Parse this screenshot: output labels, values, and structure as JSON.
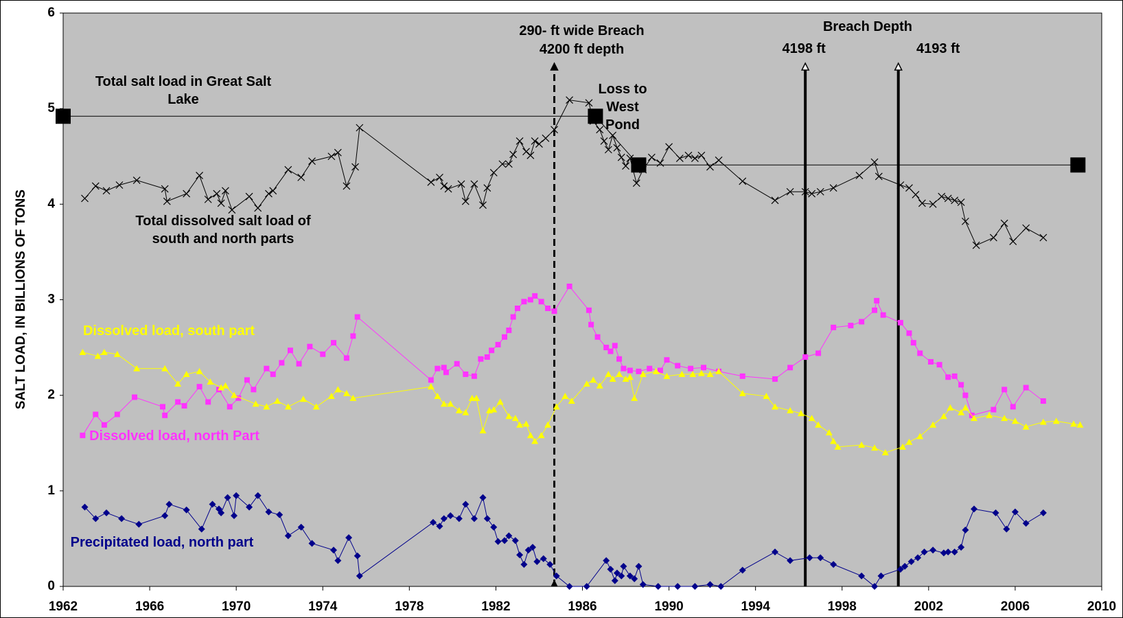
{
  "chart_data": {
    "type": "line",
    "ylabel": "SALT LOAD, IN BILLIONS OF TONS",
    "xlim": [
      1962,
      2010
    ],
    "xticks": [
      1962,
      1966,
      1970,
      1974,
      1978,
      1982,
      1986,
      1990,
      1994,
      1998,
      2002,
      2006,
      2010
    ],
    "ylim": [
      0,
      6
    ],
    "yticks": [
      0,
      1,
      2,
      3,
      4,
      5,
      6
    ],
    "grid": false,
    "series": [
      {
        "name": "Total salt load in Great Salt Lake",
        "color": "#000000",
        "marker": "bigsquare",
        "x": [
          1962,
          1986.6,
          1988.6,
          2008.9
        ],
        "values": [
          4.92,
          4.92,
          4.41,
          4.41
        ]
      },
      {
        "name": "Total dissolved salt load of south and north parts",
        "color": "#000000",
        "marker": "x",
        "x": [
          1963.0,
          1963.5,
          1964.0,
          1964.6,
          1965.4,
          1966.7,
          1966.8,
          1967.7,
          1968.3,
          1968.7,
          1969.1,
          1969.3,
          1969.5,
          1969.8,
          1970.6,
          1971.0,
          1971.5,
          1971.7,
          1972.4,
          1973.0,
          1973.5,
          1974.4,
          1974.7,
          1975.1,
          1975.5,
          1975.7,
          1979.0,
          1979.4,
          1979.6,
          1979.8,
          1980.4,
          1980.6,
          1981.0,
          1981.4,
          1981.6,
          1981.9,
          1982.3,
          1982.6,
          1982.8,
          1983.1,
          1983.4,
          1983.6,
          1983.8,
          1984.0,
          1984.3,
          1984.7,
          1985.4,
          1986.3,
          1986.5,
          1986.8,
          1987.0,
          1987.2,
          1987.4,
          1987.6,
          1987.8,
          1988.0,
          1988.2,
          1988.5,
          1988.8,
          1989.2,
          1989.6,
          1990.0,
          1990.5,
          1990.9,
          1991.2,
          1991.5,
          1991.9,
          1992.3,
          1993.4,
          1994.9,
          1995.6,
          1996.3,
          1996.6,
          1997.0,
          1997.6,
          1998.8,
          1999.5,
          1999.7,
          2000.7,
          2001.1,
          2001.4,
          2001.7,
          2002.2,
          2002.6,
          2002.9,
          2003.2,
          2003.5,
          2003.7,
          2004.2,
          2005.0,
          2005.5,
          2005.9,
          2006.5,
          2007.3
        ],
        "values": [
          4.06,
          4.19,
          4.14,
          4.2,
          4.25,
          4.16,
          4.03,
          4.11,
          4.3,
          4.05,
          4.11,
          4.01,
          4.14,
          3.94,
          4.08,
          3.96,
          4.11,
          4.14,
          4.36,
          4.28,
          4.45,
          4.5,
          4.54,
          4.19,
          4.39,
          4.8,
          4.23,
          4.28,
          4.19,
          4.16,
          4.21,
          4.03,
          4.21,
          3.99,
          4.17,
          4.33,
          4.42,
          4.42,
          4.52,
          4.66,
          4.55,
          4.51,
          4.66,
          4.63,
          4.69,
          4.78,
          5.09,
          5.06,
          4.87,
          4.78,
          4.66,
          4.57,
          4.72,
          4.59,
          4.49,
          4.4,
          4.48,
          4.22,
          4.36,
          4.49,
          4.43,
          4.6,
          4.48,
          4.51,
          4.48,
          4.51,
          4.39,
          4.46,
          4.24,
          4.04,
          4.13,
          4.13,
          4.11,
          4.13,
          4.17,
          4.3,
          4.44,
          4.29,
          4.2,
          4.17,
          4.1,
          4.01,
          4.0,
          4.08,
          4.06,
          4.04,
          4.02,
          3.82,
          3.57,
          3.65,
          3.8,
          3.61,
          3.75,
          3.65
        ]
      },
      {
        "name": "Dissolved load, north Part",
        "color": "#ff33ff",
        "marker": "square",
        "x": [
          1962.9,
          1963.5,
          1963.9,
          1964.5,
          1965.3,
          1966.6,
          1966.7,
          1967.3,
          1967.6,
          1968.3,
          1968.7,
          1969.2,
          1969.7,
          1970.1,
          1970.5,
          1970.8,
          1971.4,
          1971.7,
          1972.1,
          1972.5,
          1972.9,
          1973.4,
          1974.0,
          1974.5,
          1975.1,
          1975.4,
          1975.6,
          1979.0,
          1979.3,
          1979.6,
          1979.7,
          1980.2,
          1980.6,
          1981.0,
          1981.3,
          1981.6,
          1981.8,
          1982.1,
          1982.4,
          1982.6,
          1982.8,
          1983.0,
          1983.3,
          1983.6,
          1983.8,
          1984.1,
          1984.4,
          1984.7,
          1985.4,
          1986.3,
          1986.4,
          1986.7,
          1987.1,
          1987.3,
          1987.5,
          1987.7,
          1987.9,
          1988.2,
          1988.6,
          1989.1,
          1989.6,
          1989.9,
          1990.4,
          1991.0,
          1991.6,
          1992.3,
          1993.4,
          1994.9,
          1995.6,
          1996.3,
          1996.9,
          1997.6,
          1998.4,
          1998.9,
          1999.5,
          1999.6,
          1999.9,
          2000.7,
          2001.1,
          2001.3,
          2001.6,
          2002.1,
          2002.5,
          2002.9,
          2003.2,
          2003.5,
          2003.7,
          2004.0,
          2005.0,
          2005.5,
          2005.9,
          2006.5,
          2007.3
        ],
        "values": [
          1.58,
          1.8,
          1.69,
          1.8,
          1.98,
          1.88,
          1.79,
          1.93,
          1.89,
          2.09,
          1.93,
          2.06,
          1.88,
          1.97,
          2.16,
          2.06,
          2.28,
          2.22,
          2.34,
          2.47,
          2.33,
          2.51,
          2.43,
          2.55,
          2.39,
          2.62,
          2.82,
          2.16,
          2.28,
          2.29,
          2.24,
          2.33,
          2.22,
          2.2,
          2.38,
          2.4,
          2.47,
          2.53,
          2.61,
          2.68,
          2.82,
          2.91,
          2.98,
          3.0,
          3.04,
          2.98,
          2.91,
          2.88,
          3.14,
          2.89,
          2.74,
          2.61,
          2.5,
          2.46,
          2.52,
          2.38,
          2.28,
          2.26,
          2.25,
          2.28,
          2.26,
          2.37,
          2.31,
          2.28,
          2.29,
          2.25,
          2.2,
          2.17,
          2.29,
          2.4,
          2.44,
          2.71,
          2.73,
          2.77,
          2.89,
          2.99,
          2.84,
          2.76,
          2.65,
          2.55,
          2.44,
          2.35,
          2.32,
          2.19,
          2.2,
          2.11,
          2.0,
          1.79,
          1.85,
          2.06,
          1.88,
          2.08,
          1.94
        ]
      },
      {
        "name": "Dissolved load, south part",
        "color": "#ffff00",
        "marker": "triangle",
        "x": [
          1962.9,
          1963.6,
          1963.9,
          1964.5,
          1965.4,
          1966.7,
          1967.3,
          1967.7,
          1968.3,
          1968.8,
          1969.3,
          1969.5,
          1969.9,
          1970.9,
          1971.4,
          1971.9,
          1972.4,
          1973.1,
          1973.7,
          1974.4,
          1974.7,
          1975.1,
          1975.4,
          1979.0,
          1979.3,
          1979.6,
          1979.9,
          1980.3,
          1980.6,
          1980.9,
          1981.1,
          1981.4,
          1981.7,
          1981.9,
          1982.2,
          1982.6,
          1982.9,
          1983.1,
          1983.4,
          1983.6,
          1983.8,
          1984.1,
          1984.4,
          1984.8,
          1985.2,
          1985.5,
          1986.2,
          1986.5,
          1986.8,
          1987.2,
          1987.4,
          1987.7,
          1988.0,
          1988.2,
          1988.4,
          1988.8,
          1989.4,
          1989.9,
          1990.6,
          1991.1,
          1991.5,
          1991.9,
          1992.3,
          1993.4,
          1994.5,
          1994.9,
          1995.6,
          1996.1,
          1996.6,
          1996.9,
          1997.4,
          1997.6,
          1997.8,
          1998.9,
          1999.5,
          2000.0,
          2000.8,
          2001.1,
          2001.6,
          2002.2,
          2002.7,
          2003.0,
          2003.5,
          2003.7,
          2004.1,
          2004.8,
          2005.5,
          2006.0,
          2006.5,
          2007.3,
          2007.9,
          2008.7,
          2009.0
        ],
        "values": [
          2.45,
          2.41,
          2.45,
          2.43,
          2.28,
          2.28,
          2.12,
          2.22,
          2.25,
          2.14,
          2.08,
          2.1,
          2.0,
          1.91,
          1.88,
          1.94,
          1.88,
          1.96,
          1.88,
          1.99,
          2.06,
          2.02,
          1.97,
          2.09,
          1.99,
          1.91,
          1.91,
          1.84,
          1.82,
          1.97,
          1.97,
          1.63,
          1.84,
          1.85,
          1.93,
          1.78,
          1.76,
          1.69,
          1.7,
          1.58,
          1.52,
          1.58,
          1.69,
          1.88,
          1.99,
          1.94,
          2.12,
          2.16,
          2.1,
          2.22,
          2.17,
          2.22,
          2.17,
          2.19,
          1.97,
          2.22,
          2.25,
          2.2,
          2.22,
          2.22,
          2.23,
          2.22,
          2.25,
          2.02,
          1.99,
          1.88,
          1.84,
          1.81,
          1.76,
          1.69,
          1.61,
          1.52,
          1.46,
          1.48,
          1.45,
          1.4,
          1.46,
          1.51,
          1.57,
          1.69,
          1.78,
          1.87,
          1.82,
          1.87,
          1.76,
          1.79,
          1.76,
          1.73,
          1.67,
          1.72,
          1.73,
          1.7,
          1.69
        ]
      },
      {
        "name": "Precipitated load, north part",
        "color": "#00008b",
        "marker": "diamond",
        "x": [
          1963.0,
          1963.5,
          1964.0,
          1964.7,
          1965.5,
          1966.7,
          1966.9,
          1967.7,
          1968.4,
          1968.9,
          1969.2,
          1969.3,
          1969.6,
          1969.9,
          1970.0,
          1970.6,
          1971.0,
          1971.5,
          1972.0,
          1972.4,
          1973.0,
          1973.5,
          1974.5,
          1974.7,
          1975.2,
          1975.6,
          1975.7,
          1979.1,
          1979.4,
          1979.6,
          1979.9,
          1980.3,
          1980.6,
          1981.0,
          1981.4,
          1981.6,
          1981.9,
          1982.1,
          1982.4,
          1982.6,
          1982.9,
          1983.1,
          1983.3,
          1983.5,
          1983.7,
          1983.9,
          1984.2,
          1984.5,
          1984.8,
          1985.4,
          1986.2,
          1987.1,
          1987.3,
          1987.5,
          1987.6,
          1987.8,
          1987.9,
          1988.2,
          1988.4,
          1988.6,
          1988.8,
          1989.5,
          1990.4,
          1991.2,
          1991.9,
          1992.4,
          1993.4,
          1994.9,
          1995.6,
          1996.5,
          1997.0,
          1997.6,
          1998.9,
          1999.5,
          1999.8,
          2000.7,
          2000.9,
          2001.2,
          2001.5,
          2001.8,
          2002.2,
          2002.7,
          2002.9,
          2003.2,
          2003.5,
          2003.7,
          2004.1,
          2005.1,
          2005.6,
          2006.0,
          2006.5,
          2007.3
        ],
        "values": [
          0.83,
          0.71,
          0.77,
          0.71,
          0.65,
          0.74,
          0.86,
          0.8,
          0.6,
          0.86,
          0.81,
          0.77,
          0.93,
          0.74,
          0.95,
          0.83,
          0.95,
          0.78,
          0.75,
          0.53,
          0.62,
          0.45,
          0.38,
          0.27,
          0.51,
          0.32,
          0.11,
          0.67,
          0.63,
          0.71,
          0.74,
          0.71,
          0.86,
          0.71,
          0.93,
          0.71,
          0.62,
          0.47,
          0.48,
          0.53,
          0.48,
          0.33,
          0.23,
          0.38,
          0.41,
          0.26,
          0.29,
          0.23,
          0.11,
          0,
          0,
          0.27,
          0.18,
          0.06,
          0.14,
          0.11,
          0.21,
          0.11,
          0.08,
          0.21,
          0.02,
          0,
          0,
          0,
          0.02,
          0,
          0.17,
          0.36,
          0.27,
          0.3,
          0.3,
          0.23,
          0.11,
          0,
          0.11,
          0.18,
          0.21,
          0.26,
          0.3,
          0.36,
          0.38,
          0.35,
          0.36,
          0.36,
          0.41,
          0.59,
          0.81,
          0.77,
          0.6,
          0.78,
          0.66,
          0.77
        ]
      }
    ],
    "events": [
      {
        "x": 1984.7,
        "style": "dashed",
        "labels": [
          "290- ft wide Breach",
          "4200 ft depth"
        ]
      },
      {
        "x": 1996.3,
        "style": "solid",
        "labels": [
          "4198  ft"
        ]
      },
      {
        "x": 2000.6,
        "style": "solid",
        "labels": [
          "4193 ft"
        ]
      }
    ],
    "annotations": [
      {
        "text": "Breach Depth"
      },
      {
        "text": "Loss to West Pond"
      }
    ]
  }
}
